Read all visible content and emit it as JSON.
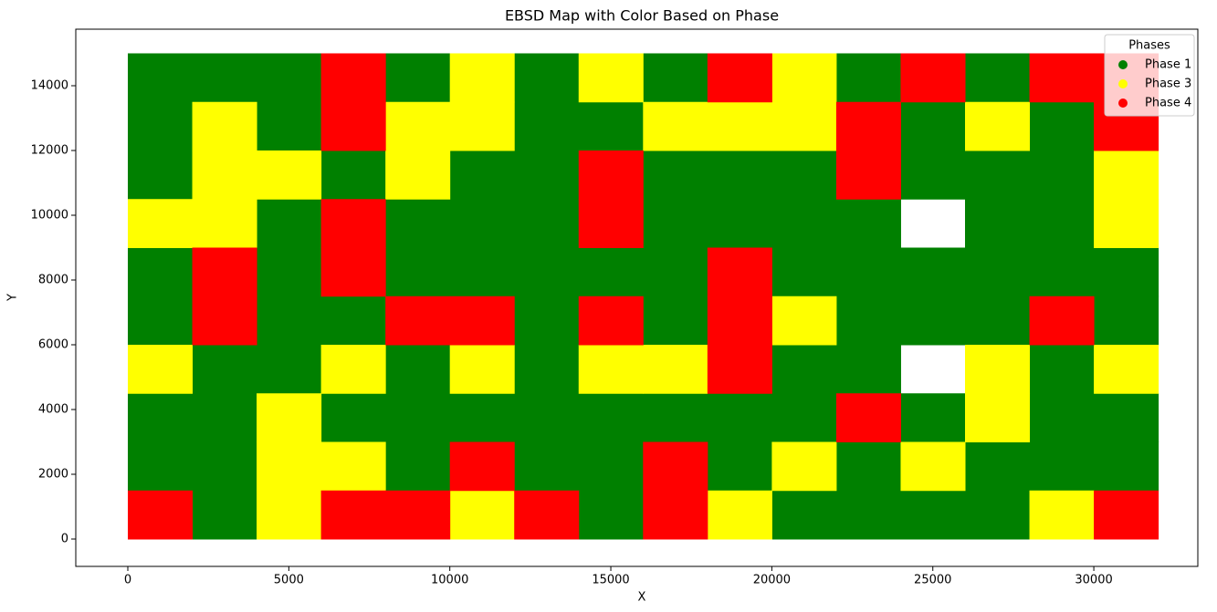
{
  "chart_data": {
    "type": "scatter",
    "title": "EBSD Map with Color Based on Phase",
    "x_label": "X",
    "y_label": "Y",
    "legend_title": "Phases",
    "legend": "upper right",
    "xlim": [
      -1616,
      33230
    ],
    "ylim": [
      -845,
      15746
    ],
    "xticks": [
      0,
      5000,
      10000,
      15000,
      20000,
      25000,
      30000
    ],
    "yticks": [
      0,
      2000,
      4000,
      6000,
      8000,
      10000,
      12000,
      14000
    ],
    "series": [
      {
        "name": "Phase 1",
        "color": "#008000",
        "x": [
          1000,
          3000,
          5000,
          9000,
          13000,
          17000,
          23000,
          27000,
          1000,
          5000,
          13000,
          15000,
          25000,
          29000,
          1000,
          7000,
          11000,
          13000,
          17000,
          19000,
          21000,
          25000,
          27000,
          29000,
          5000,
          9000,
          11000,
          13000,
          17000,
          19000,
          21000,
          23000,
          27000,
          29000,
          1000,
          5000,
          9000,
          11000,
          13000,
          15000,
          17000,
          21000,
          23000,
          25000,
          27000,
          29000,
          31000,
          1000,
          5000,
          7000,
          13000,
          17000,
          23000,
          25000,
          27000,
          31000,
          3000,
          5000,
          9000,
          13000,
          21000,
          23000,
          29000,
          1000,
          3000,
          7000,
          9000,
          11000,
          13000,
          15000,
          17000,
          19000,
          21000,
          25000,
          29000,
          31000,
          1000,
          3000,
          9000,
          13000,
          15000,
          19000,
          23000,
          27000,
          29000,
          31000,
          3000,
          15000,
          21000,
          23000,
          25000,
          27000
        ],
        "values": [
          14250,
          14250,
          14250,
          14250,
          14250,
          14250,
          14250,
          14250,
          12750,
          12750,
          12750,
          12750,
          12750,
          12750,
          11250,
          11250,
          11250,
          11250,
          11250,
          11250,
          11250,
          11250,
          11250,
          11250,
          9750,
          9750,
          9750,
          9750,
          9750,
          9750,
          9750,
          9750,
          9750,
          9750,
          8250,
          8250,
          8250,
          8250,
          8250,
          8250,
          8250,
          8250,
          8250,
          8250,
          8250,
          8250,
          8250,
          6750,
          6750,
          6750,
          6750,
          6750,
          6750,
          6750,
          6750,
          6750,
          5250,
          5250,
          5250,
          5250,
          5250,
          5250,
          5250,
          3750,
          3750,
          3750,
          3750,
          3750,
          3750,
          3750,
          3750,
          3750,
          3750,
          3750,
          3750,
          3750,
          2250,
          2250,
          2250,
          2250,
          2250,
          2250,
          2250,
          2250,
          2250,
          2250,
          750,
          750,
          750,
          750,
          750,
          750
        ]
      },
      {
        "name": "Phase 3",
        "color": "#ffff00",
        "x": [
          11000,
          15000,
          21000,
          3000,
          9000,
          11000,
          17000,
          19000,
          21000,
          27000,
          3000,
          5000,
          9000,
          31000,
          1000,
          3000,
          31000,
          21000,
          1000,
          7000,
          11000,
          15000,
          17000,
          27000,
          31000,
          5000,
          27000,
          5000,
          7000,
          21000,
          25000,
          5000,
          11000,
          19000,
          29000
        ],
        "values": [
          14250,
          14250,
          14250,
          12750,
          12750,
          12750,
          12750,
          12750,
          12750,
          12750,
          11250,
          11250,
          11250,
          11250,
          9750,
          9750,
          9750,
          6750,
          5250,
          5250,
          5250,
          5250,
          5250,
          5250,
          5250,
          3750,
          3750,
          2250,
          2250,
          2250,
          2250,
          750,
          750,
          750,
          750
        ]
      },
      {
        "name": "Phase 4",
        "color": "#ff0000",
        "x": [
          7000,
          19000,
          25000,
          29000,
          31000,
          7000,
          23000,
          31000,
          15000,
          23000,
          7000,
          15000,
          3000,
          7000,
          19000,
          3000,
          9000,
          11000,
          15000,
          19000,
          29000,
          19000,
          23000,
          11000,
          17000,
          1000,
          7000,
          9000,
          13000,
          17000,
          31000
        ],
        "values": [
          14250,
          14250,
          14250,
          14250,
          14250,
          12750,
          12750,
          12750,
          11250,
          11250,
          9750,
          9750,
          8250,
          8250,
          8250,
          6750,
          6750,
          6750,
          6750,
          6750,
          6750,
          5250,
          3750,
          2250,
          2250,
          750,
          750,
          750,
          750,
          750,
          750
        ]
      }
    ]
  }
}
